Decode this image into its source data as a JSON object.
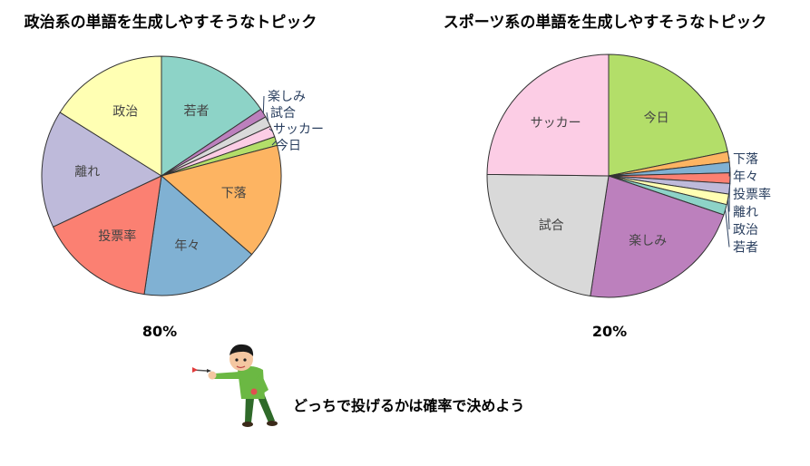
{
  "caption": "どっちで投げるかは確率で決めよう",
  "figure": {
    "name": "dart-thrower-illustration"
  },
  "chart_data": [
    {
      "type": "pie",
      "title": "政治系の単語を生成しやすそうなトピック",
      "percent_label": "80%",
      "labels": [
        "若者",
        "楽しみ",
        "試合",
        "サッカー",
        "今日",
        "下落",
        "年々",
        "投票率",
        "離れ",
        "政治"
      ],
      "values": [
        15.6,
        1.2,
        1.4,
        1.5,
        1.2,
        15.5,
        15.9,
        15.7,
        15.9,
        16.1
      ],
      "colors": [
        "#8dd3c7",
        "#bc80bd",
        "#d9d9d9",
        "#fccde5",
        "#b3de69",
        "#fdb462",
        "#80b1d3",
        "#fb8072",
        "#bebada",
        "#ffffb3"
      ],
      "label_outside": [
        false,
        true,
        true,
        true,
        true,
        false,
        false,
        false,
        false,
        false
      ]
    },
    {
      "type": "pie",
      "title": "スポーツ系の単語を生成しやすそうなトピック",
      "percent_label": "20%",
      "labels": [
        "今日",
        "下落",
        "年々",
        "投票率",
        "離れ",
        "政治",
        "若者",
        "楽しみ",
        "試合",
        "サッカー"
      ],
      "values": [
        21.8,
        1.4,
        1.4,
        1.4,
        1.4,
        1.4,
        1.4,
        22.2,
        22.8,
        24.8
      ],
      "colors": [
        "#b3de69",
        "#fdb462",
        "#80b1d3",
        "#fb8072",
        "#bebada",
        "#ffffb3",
        "#8dd3c7",
        "#bc80bd",
        "#d9d9d9",
        "#fccde5"
      ],
      "label_outside": [
        false,
        true,
        true,
        true,
        true,
        true,
        true,
        false,
        false,
        false
      ]
    }
  ]
}
